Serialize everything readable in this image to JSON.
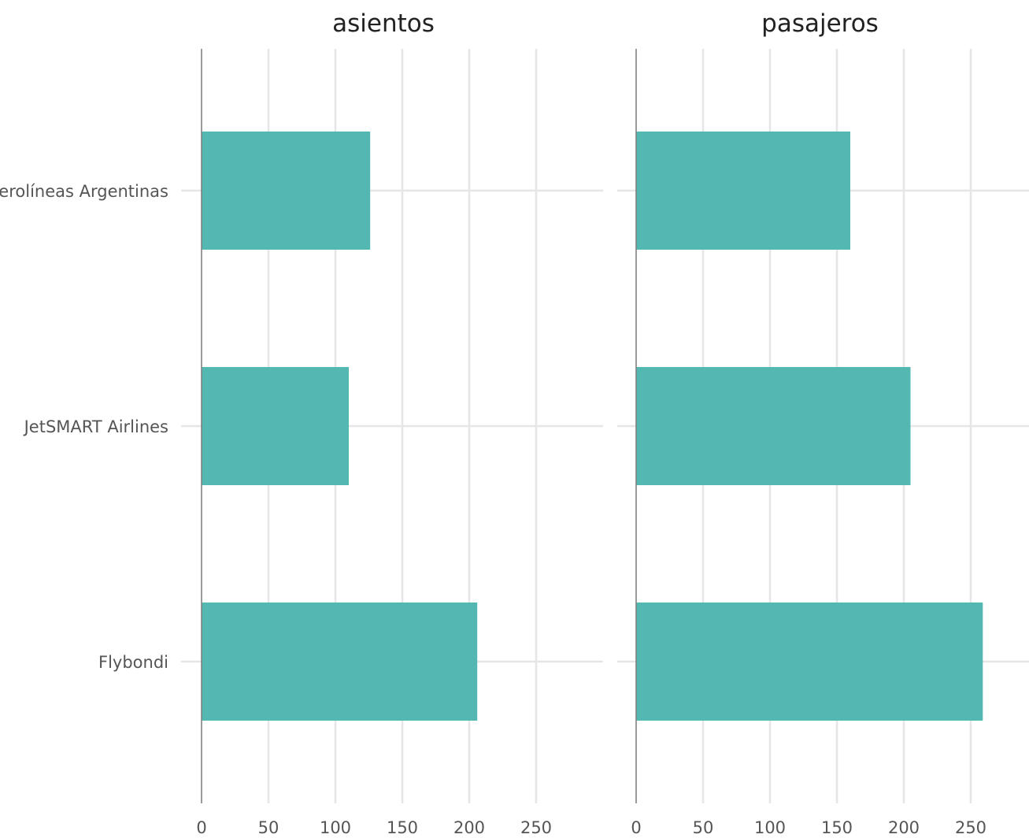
{
  "chart_data": {
    "type": "bar",
    "orientation": "horizontal",
    "categories": [
      "Aerolíneas Argentinas",
      "JetSMART Airlines",
      "Flybondi"
    ],
    "xticks": [
      0,
      50,
      100,
      150,
      200,
      250
    ],
    "xlim": [
      0,
      275
    ],
    "grid": true,
    "bar_color": "#52b8b1",
    "panels": [
      {
        "title": "asientos",
        "values": [
          126,
          110,
          206
        ]
      },
      {
        "title": "pasajeros",
        "values": [
          160,
          205,
          259
        ]
      }
    ]
  }
}
